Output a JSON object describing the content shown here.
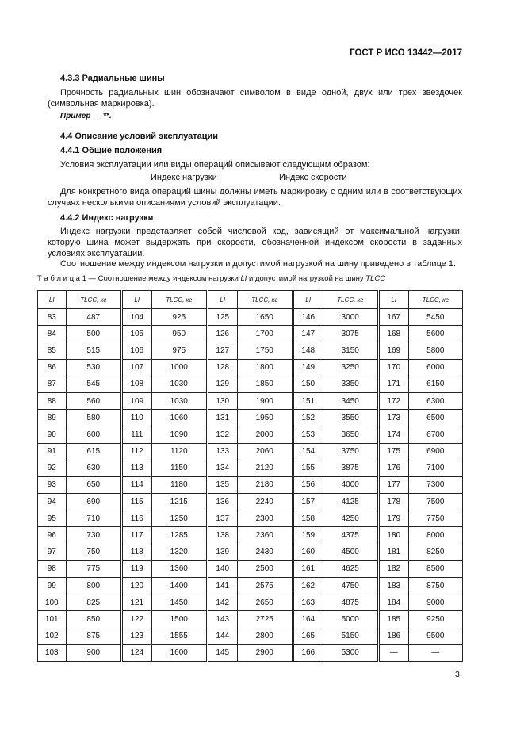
{
  "header": {
    "doc_id": "ГОСТ Р ИСО 13442—2017"
  },
  "sections": {
    "s433_title": "4.3.3 Радиальные шины",
    "s433_text": "Прочность радиальных шин обозначают символом в виде одной, двух или трех звездочек (символьная маркировка).",
    "s433_example": "Пример — **.",
    "s44_title": "4.4 Описание условий эксплуатации",
    "s441_title": "4.4.1 Общие положения",
    "s441_text": "Условия эксплуатации или виды операций описывают следующим образом:",
    "s441_load_index": "Индекс нагрузки",
    "s441_speed_index": "Индекс скорости",
    "s441_text2": "Для конкретного вида операций шины должны иметь маркировку с одним или в соответствующих случаях несколькими описаниями условий эксплуатации.",
    "s442_title": "4.4.2 Индекс нагрузки",
    "s442_text": "Индекс нагрузки представляет собой числовой код, зависящий от максимальной нагрузки, которую шина может выдержать при скорости, обозначенной индексом скорости в заданных условиях эксплуатации.",
    "s442_text2": "Соотношение между индексом нагрузки и допустимой нагрузкой на шину приведено в таблице 1."
  },
  "table": {
    "caption_prefix": "Т а б л и ц а  1 — Соотношение между индексом нагрузки ",
    "caption_li": "LI",
    "caption_mid": " и допустимой нагрузкой на шину ",
    "caption_tlcc": "TLCC",
    "headers": [
      "LI",
      "TLCC, кг",
      "LI",
      "TLCC, кг",
      "LI",
      "TLCC, кг",
      "LI",
      "TLCC, кг",
      "LI",
      "TLCC, кг"
    ],
    "rows": [
      [
        "83",
        "487",
        "104",
        "925",
        "125",
        "1650",
        "146",
        "3000",
        "167",
        "5450"
      ],
      [
        "84",
        "500",
        "105",
        "950",
        "126",
        "1700",
        "147",
        "3075",
        "168",
        "5600"
      ],
      [
        "85",
        "515",
        "106",
        "975",
        "127",
        "1750",
        "148",
        "3150",
        "169",
        "5800"
      ],
      [
        "86",
        "530",
        "107",
        "1000",
        "128",
        "1800",
        "149",
        "3250",
        "170",
        "6000"
      ],
      [
        "87",
        "545",
        "108",
        "1030",
        "129",
        "1850",
        "150",
        "3350",
        "171",
        "6150"
      ],
      [
        "88",
        "560",
        "109",
        "1030",
        "130",
        "1900",
        "151",
        "3450",
        "172",
        "6300"
      ],
      [
        "89",
        "580",
        "110",
        "1060",
        "131",
        "1950",
        "152",
        "3550",
        "173",
        "6500"
      ],
      [
        "90",
        "600",
        "111",
        "1090",
        "132",
        "2000",
        "153",
        "3650",
        "174",
        "6700"
      ],
      [
        "91",
        "615",
        "112",
        "1120",
        "133",
        "2060",
        "154",
        "3750",
        "175",
        "6900"
      ],
      [
        "92",
        "630",
        "113",
        "1150",
        "134",
        "2120",
        "155",
        "3875",
        "176",
        "7100"
      ],
      [
        "93",
        "650",
        "114",
        "1180",
        "135",
        "2180",
        "156",
        "4000",
        "177",
        "7300"
      ],
      [
        "94",
        "690",
        "115",
        "1215",
        "136",
        "2240",
        "157",
        "4125",
        "178",
        "7500"
      ],
      [
        "95",
        "710",
        "116",
        "1250",
        "137",
        "2300",
        "158",
        "4250",
        "179",
        "7750"
      ],
      [
        "96",
        "730",
        "117",
        "1285",
        "138",
        "2360",
        "159",
        "4375",
        "180",
        "8000"
      ],
      [
        "97",
        "750",
        "118",
        "1320",
        "139",
        "2430",
        "160",
        "4500",
        "181",
        "8250"
      ],
      [
        "98",
        "775",
        "119",
        "1360",
        "140",
        "2500",
        "161",
        "4625",
        "182",
        "8500"
      ],
      [
        "99",
        "800",
        "120",
        "1400",
        "141",
        "2575",
        "162",
        "4750",
        "183",
        "8750"
      ],
      [
        "100",
        "825",
        "121",
        "1450",
        "142",
        "2650",
        "163",
        "4875",
        "184",
        "9000"
      ],
      [
        "101",
        "850",
        "122",
        "1500",
        "143",
        "2725",
        "164",
        "5000",
        "185",
        "9250"
      ],
      [
        "102",
        "875",
        "123",
        "1555",
        "144",
        "2800",
        "165",
        "5150",
        "186",
        "9500"
      ],
      [
        "103",
        "900",
        "124",
        "1600",
        "145",
        "2900",
        "166",
        "5300",
        "—",
        "—"
      ]
    ]
  },
  "footer": {
    "page_number": "3"
  }
}
